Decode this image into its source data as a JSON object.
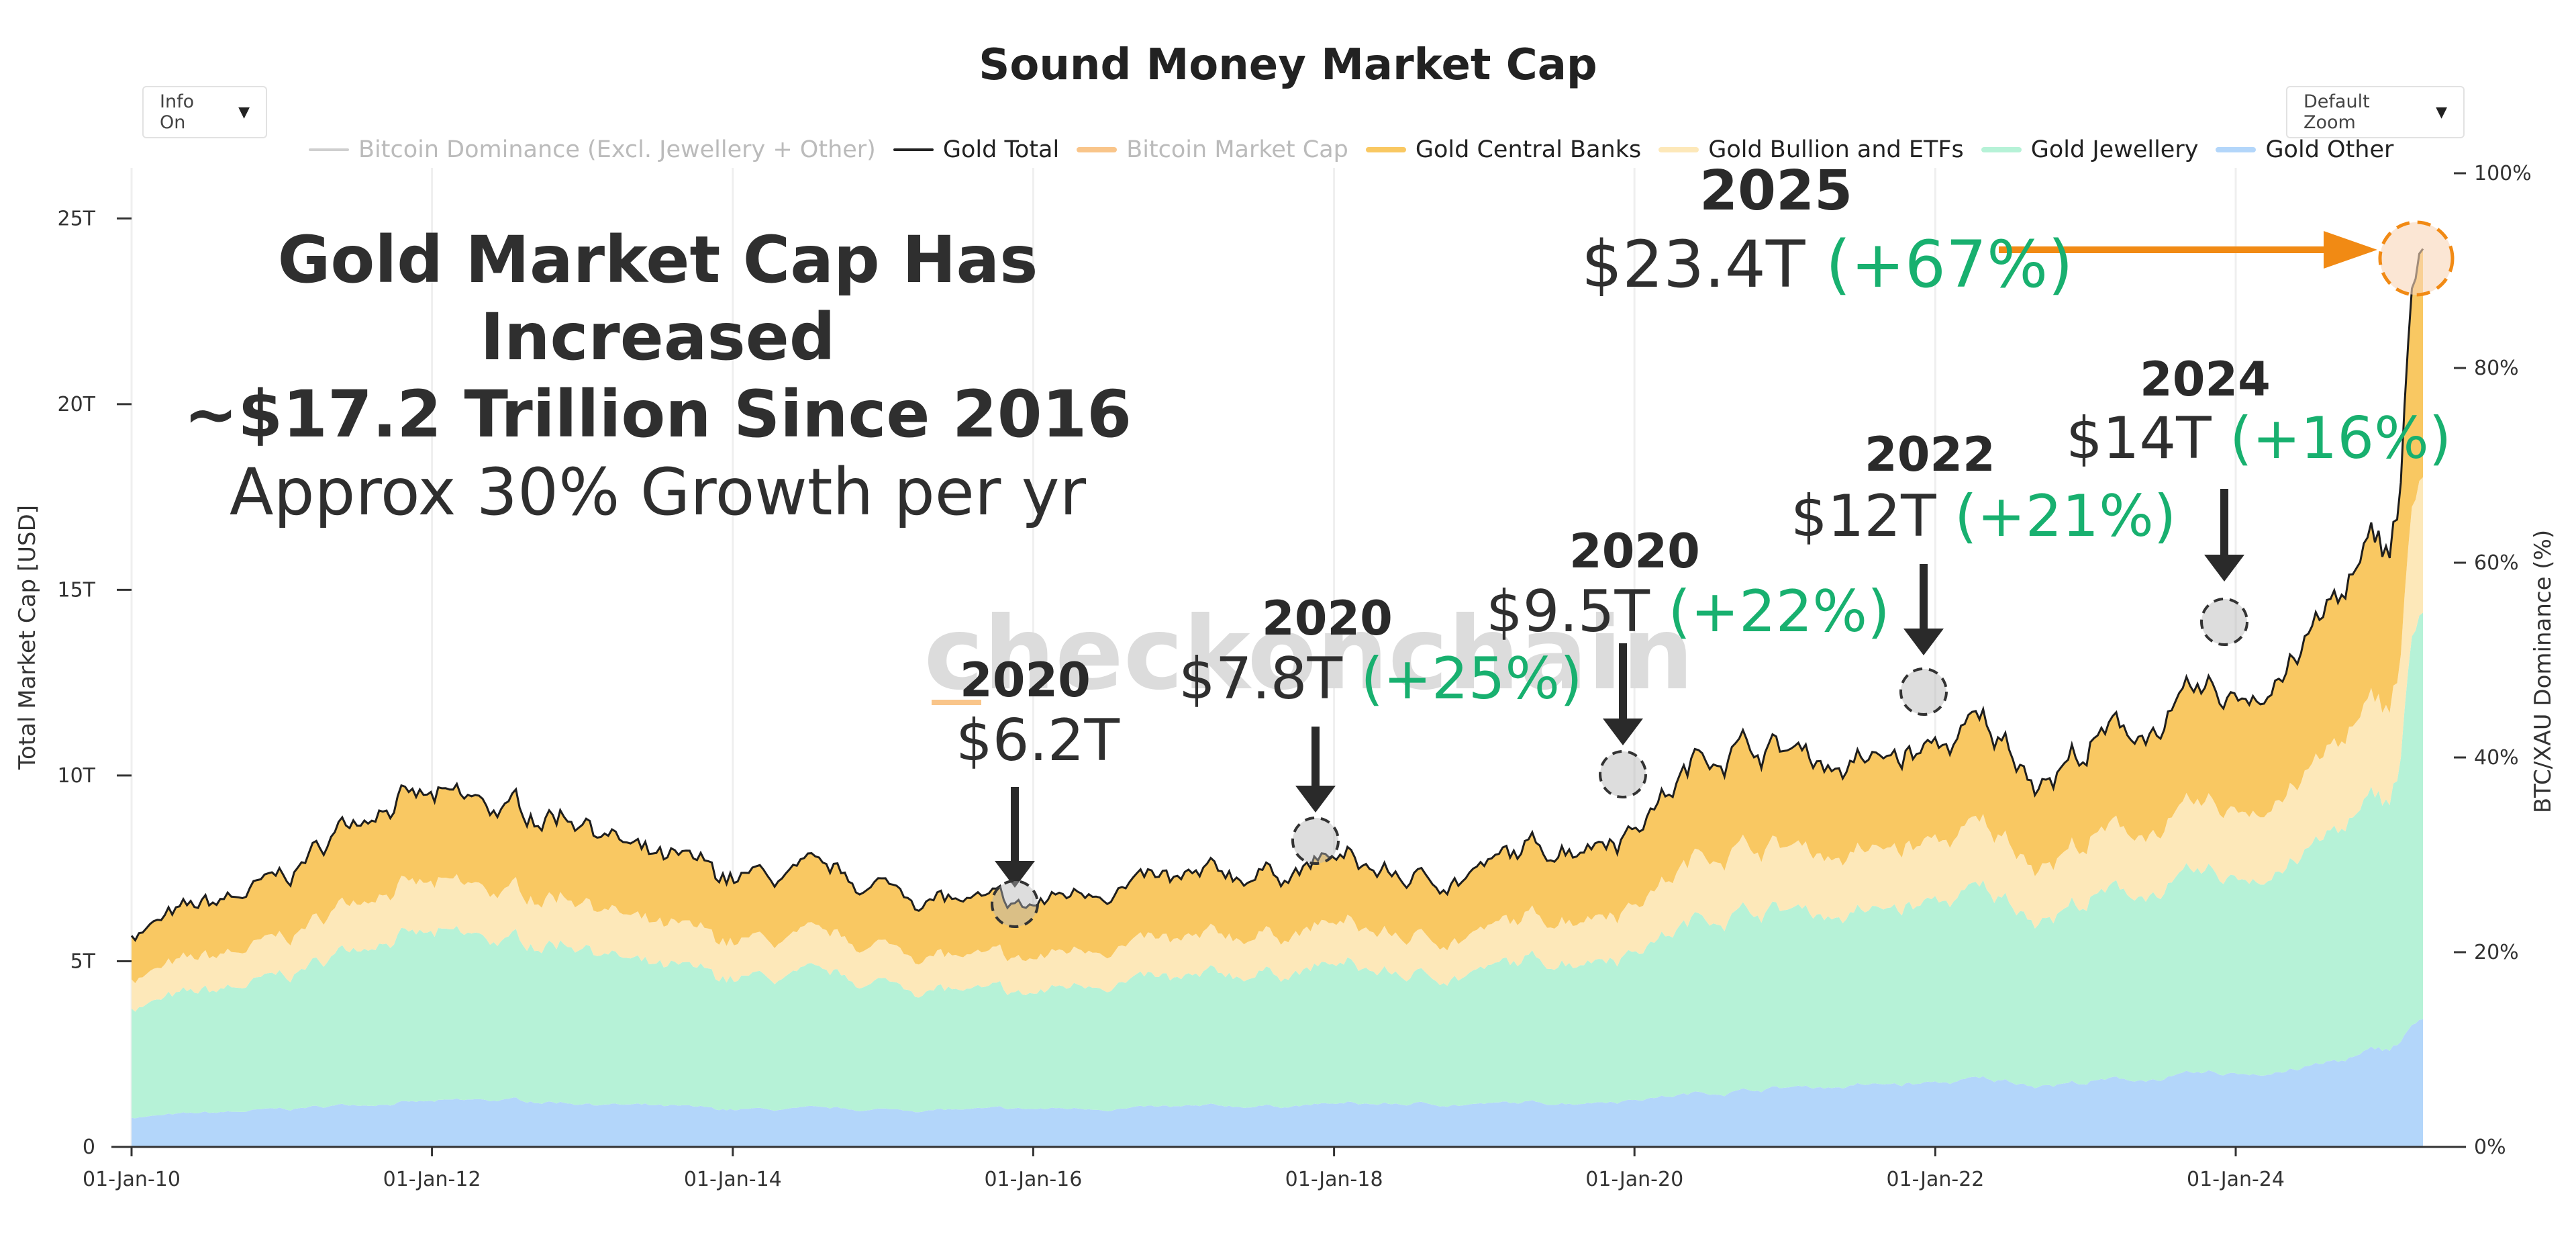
{
  "title": "Sound Money Market Cap",
  "controls": {
    "info_label": "Info On",
    "zoom_label": "Default Zoom",
    "dropdown_icon": "chevron-down-icon"
  },
  "legend": [
    {
      "label": "Bitcoin Dominance (Excl. Jewellery + Other)",
      "color": "#cfcfcf",
      "kind": "line",
      "hidden": true
    },
    {
      "label": "Gold Total",
      "color": "#222222",
      "kind": "line",
      "hidden": false
    },
    {
      "label": "Bitcoin Market Cap",
      "color": "#f9c58a",
      "kind": "area",
      "hidden": true
    },
    {
      "label": "Gold Central Banks",
      "color": "#f9c862",
      "kind": "area",
      "hidden": false
    },
    {
      "label": "Gold Bullion and ETFs",
      "color": "#fde8b9",
      "kind": "area",
      "hidden": false
    },
    {
      "label": "Gold Jewellery",
      "color": "#b6f2d7",
      "kind": "area",
      "hidden": false
    },
    {
      "label": "Gold Other",
      "color": "#b3d6fa",
      "kind": "area",
      "hidden": false
    }
  ],
  "watermark": "checkonchain",
  "headline": {
    "line1": "Gold Market Cap Has Increased",
    "line2": "~$17.2 Trillion Since 2016",
    "line3": "Approx 30% Growth per yr"
  },
  "annotations": [
    {
      "year": "2020",
      "value": "$6.2T",
      "pct": ""
    },
    {
      "year": "2020",
      "value": "$7.8T",
      "pct": "(+25%)"
    },
    {
      "year": "2020",
      "value": "$9.5T",
      "pct": "(+22%)"
    },
    {
      "year": "2022",
      "value": "$12T",
      "pct": "(+21%)"
    },
    {
      "year": "2024",
      "value": "$14T",
      "pct": "(+16%)"
    },
    {
      "year": "2025",
      "value": "$23.4T",
      "pct": "(+67%)"
    }
  ],
  "chart_data": {
    "type": "area",
    "title": "Sound Money Market Cap",
    "xlabel": "",
    "ylabel": "Total Market Cap [USD]",
    "y2label": "BTC/XAU Dominance (%)",
    "x_ticks": [
      "01-Jan-10",
      "01-Jan-12",
      "01-Jan-14",
      "01-Jan-16",
      "01-Jan-18",
      "01-Jan-20",
      "01-Jan-22",
      "01-Jan-24"
    ],
    "y_ticks": [
      "0",
      "5T",
      "10T",
      "15T",
      "20T",
      "25T"
    ],
    "y2_ticks": [
      "0%",
      "20%",
      "40%",
      "60%",
      "80%",
      "100%"
    ],
    "xlim": [
      "2010-01-01",
      "2025-03-31"
    ],
    "ylim": [
      0,
      26000000000000
    ],
    "y2lim": [
      0,
      100
    ],
    "stacked": true,
    "grid": "vertical",
    "legend_position": "top",
    "x": [
      "2010-01",
      "2010-07",
      "2011-01",
      "2011-05",
      "2011-09",
      "2012-01",
      "2012-07",
      "2013-01",
      "2013-06",
      "2013-12",
      "2014-06",
      "2015-01",
      "2015-07",
      "2015-12",
      "2016-07",
      "2017-01",
      "2017-07",
      "2018-01",
      "2018-08",
      "2019-01",
      "2019-08",
      "2020-01",
      "2020-08",
      "2021-01",
      "2021-07",
      "2022-01",
      "2022-04",
      "2022-10",
      "2023-01",
      "2023-07",
      "2024-01",
      "2024-07",
      "2024-10",
      "2025-01",
      "2025-02",
      "2025-03"
    ],
    "series": [
      {
        "name": "Gold Other",
        "values": [
          800000000000.0,
          900000000000.0,
          1000000000000.0,
          1100000000000.0,
          1200000000000.0,
          1200000000000.0,
          1250000000000.0,
          1200000000000.0,
          1100000000000.0,
          1000000000000.0,
          1000000000000.0,
          1000000000000.0,
          1000000000000.0,
          1000000000000.0,
          1050000000000.0,
          1050000000000.0,
          1100000000000.0,
          1150000000000.0,
          1150000000000.0,
          1150000000000.0,
          1200000000000.0,
          1300000000000.0,
          1500000000000.0,
          1600000000000.0,
          1650000000000.0,
          1700000000000.0,
          1800000000000.0,
          1700000000000.0,
          1750000000000.0,
          1850000000000.0,
          1950000000000.0,
          2150000000000.0,
          2350000000000.0,
          2600000000000.0,
          2800000000000.0,
          3300000000000.0
        ]
      },
      {
        "name": "Gold Jewellery",
        "values": [
          3000000000000.0,
          3200000000000.0,
          3500000000000.0,
          4000000000000.0,
          4600000000000.0,
          4400000000000.0,
          4200000000000.0,
          4400000000000.0,
          3700000000000.0,
          3500000000000.0,
          3500000000000.0,
          3400000000000.0,
          3200000000000.0,
          3000000000000.0,
          3500000000000.0,
          3300000000000.0,
          3600000000000.0,
          3700000000000.0,
          3400000000000.0,
          3600000000000.0,
          3900000000000.0,
          4100000000000.0,
          4900000000000.0,
          4800000000000.0,
          4600000000000.0,
          4800000000000.0,
          5000000000000.0,
          4600000000000.0,
          4900000000000.0,
          5100000000000.0,
          5200000000000.0,
          5800000000000.0,
          6300000000000.0,
          6600000000000.0,
          7300000000000.0,
          10500000000000.0
        ]
      },
      {
        "name": "Gold Bullion and ETFs",
        "values": [
          800000000000.0,
          900000000000.0,
          1000000000000.0,
          1200000000000.0,
          1400000000000.0,
          1300000000000.0,
          1300000000000.0,
          1300000000000.0,
          1100000000000.0,
          1000000000000.0,
          1000000000000.0,
          1000000000000.0,
          900000000000.0,
          900000000000.0,
          1000000000000.0,
          1000000000000.0,
          1050000000000.0,
          1100000000000.0,
          1000000000000.0,
          1050000000000.0,
          1200000000000.0,
          1300000000000.0,
          1800000000000.0,
          1700000000000.0,
          1600000000000.0,
          1600000000000.0,
          1700000000000.0,
          1500000000000.0,
          1600000000000.0,
          1700000000000.0,
          1800000000000.0,
          2100000000000.0,
          2400000000000.0,
          2500000000000.0,
          2700000000000.0,
          3500000000000.0
        ]
      },
      {
        "name": "Gold Central Banks",
        "values": [
          1200000000000.0,
          1400000000000.0,
          1600000000000.0,
          2000000000000.0,
          2400000000000.0,
          2300000000000.0,
          2200000000000.0,
          2200000000000.0,
          1800000000000.0,
          1700000000000.0,
          1700000000000.0,
          1600000000000.0,
          1500000000000.0,
          1400000000000.0,
          1600000000000.0,
          1600000000000.0,
          1650000000000.0,
          1750000000000.0,
          1550000000000.0,
          1700000000000.0,
          1950000000000.0,
          2100000000000.0,
          2800000000000.0,
          2600000000000.0,
          2400000000000.0,
          2500000000000.0,
          2700000000000.0,
          2300000000000.0,
          2500000000000.0,
          2800000000000.0,
          3000000000000.0,
          3600000000000.0,
          4000000000000.0,
          4200000000000.0,
          4500000000000.0,
          5900000000000.0
        ]
      }
    ],
    "gold_total_line": true
  },
  "chart_icons": {
    "arrow": "arrow-down-icon",
    "marker": "dashed-circle-icon"
  }
}
